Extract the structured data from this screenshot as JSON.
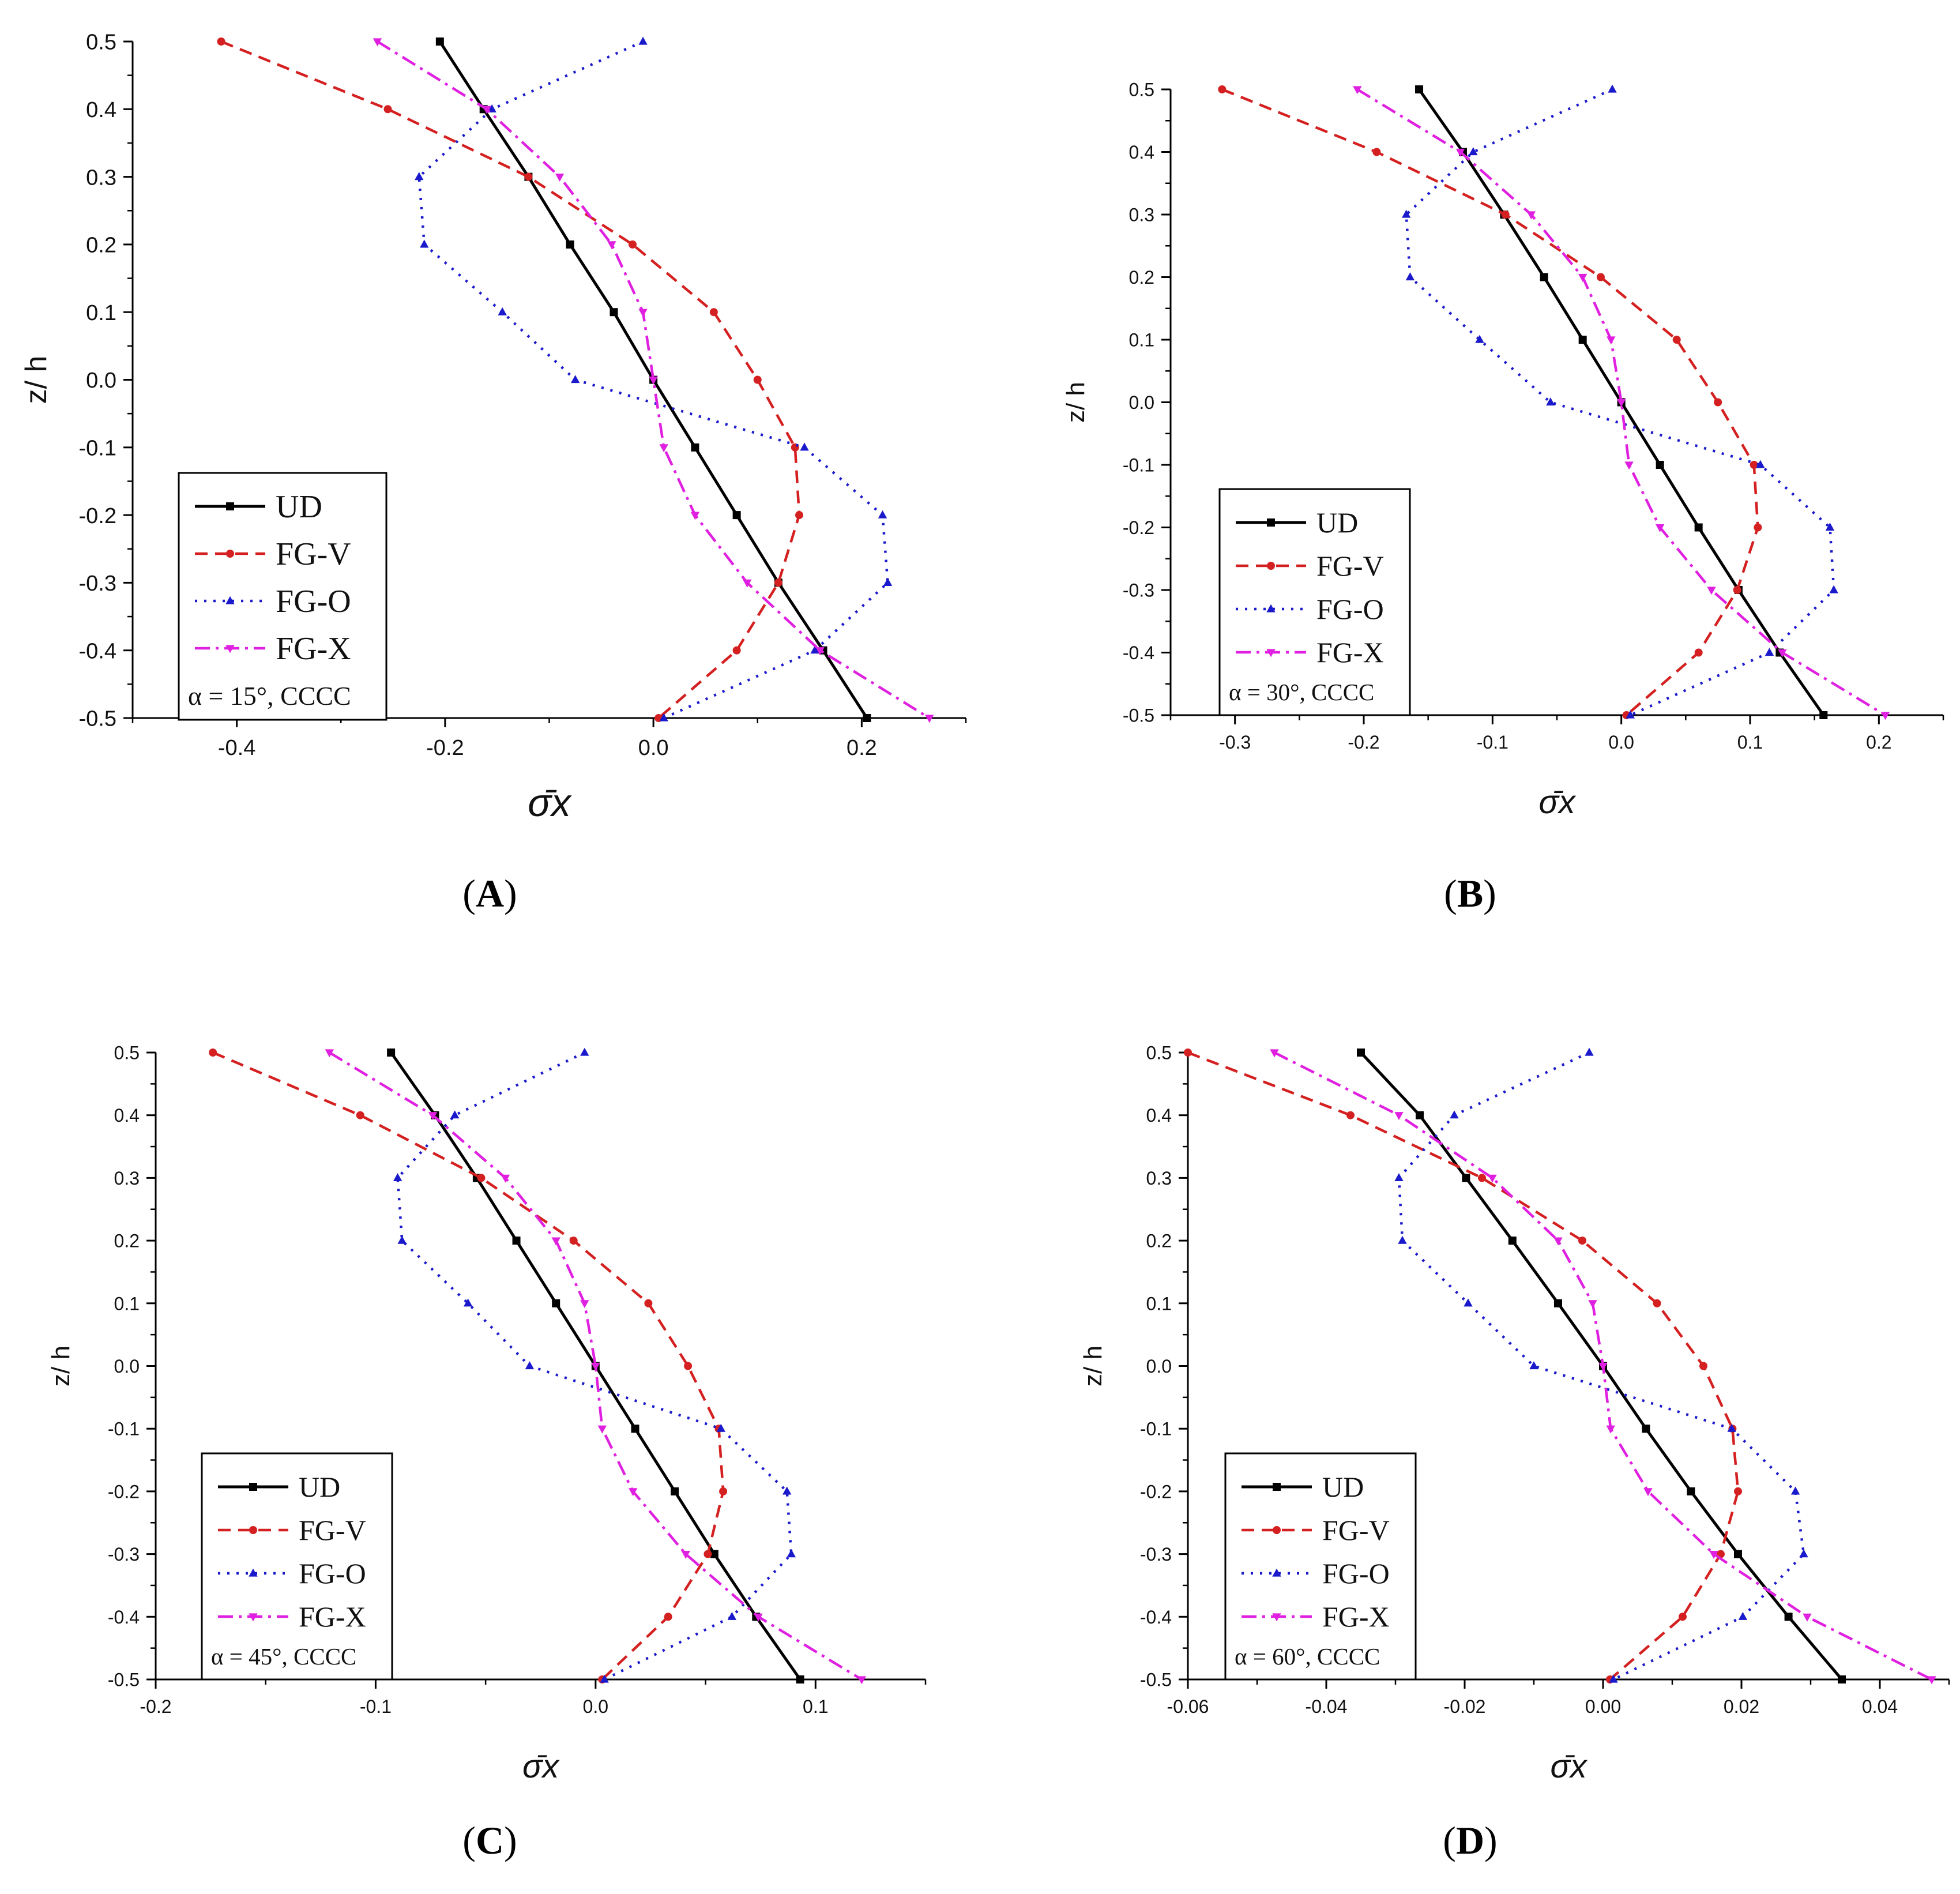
{
  "colors": {
    "UD": "#000000",
    "FG-V": "#d42020",
    "FG-O": "#1a1acc",
    "FG-X": "#e020e0"
  },
  "chart_data": [
    {
      "type": "line",
      "panel": "A",
      "caption_letter": "A",
      "xlabel": "σ̄x",
      "ylabel": "z/ h",
      "xlim": [
        -0.5,
        0.3
      ],
      "ylim": [
        -0.5,
        0.5
      ],
      "x_ticks": [
        -0.4,
        -0.2,
        0.0,
        0.2
      ],
      "x_tick_labels": [
        "-0.4",
        "-0.2",
        "0.0",
        "0.2"
      ],
      "y_ticks": [
        0.5,
        0.4,
        0.3,
        0.2,
        0.1,
        0.0,
        -0.1,
        -0.2,
        -0.3,
        -0.4,
        -0.5
      ],
      "y_tick_labels": [
        "0.5",
        "0.4",
        "0.3",
        "0.2",
        "0.1",
        "0.0",
        "-0.1",
        "-0.2",
        "-0.3",
        "-0.4",
        "-0.5"
      ],
      "annotation": "α = 15°, CCCC",
      "y": [
        0.5,
        0.4,
        0.3,
        0.2,
        0.1,
        0.0,
        -0.1,
        -0.2,
        -0.3,
        -0.4,
        -0.5
      ],
      "series": [
        {
          "name": "UD",
          "values": [
            -0.205,
            -0.163,
            -0.12,
            -0.08,
            -0.038,
            0.0,
            0.04,
            0.08,
            0.12,
            0.163,
            0.205
          ]
        },
        {
          "name": "FG-V",
          "values": [
            -0.415,
            -0.255,
            -0.12,
            -0.02,
            0.058,
            0.1,
            0.136,
            0.14,
            0.12,
            0.08,
            0.005
          ]
        },
        {
          "name": "FG-O",
          "values": [
            -0.01,
            -0.155,
            -0.225,
            -0.22,
            -0.145,
            -0.075,
            0.145,
            0.22,
            0.225,
            0.155,
            0.01
          ]
        },
        {
          "name": "FG-X",
          "values": [
            -0.265,
            -0.16,
            -0.09,
            -0.04,
            -0.01,
            0.0,
            0.01,
            0.04,
            0.09,
            0.16,
            0.265
          ]
        }
      ]
    },
    {
      "type": "line",
      "panel": "B",
      "caption_letter": "B",
      "xlabel": "σ̄x",
      "ylabel": "z/ h",
      "xlim": [
        -0.35,
        0.25
      ],
      "ylim": [
        -0.5,
        0.5
      ],
      "x_ticks": [
        -0.3,
        -0.2,
        -0.1,
        0.0,
        0.1,
        0.2
      ],
      "x_tick_labels": [
        "-0.3",
        "-0.2",
        "-0.1",
        "0.0",
        "0.1",
        "0.2"
      ],
      "y_ticks": [
        0.5,
        0.4,
        0.3,
        0.2,
        0.1,
        0.0,
        -0.1,
        -0.2,
        -0.3,
        -0.4,
        -0.5
      ],
      "y_tick_labels": [
        "0.5",
        "0.4",
        "0.3",
        "0.2",
        "0.1",
        "0.0",
        "-0.1",
        "-0.2",
        "-0.3",
        "-0.4",
        "-0.5"
      ],
      "annotation": "α = 30°, CCCC",
      "y": [
        0.5,
        0.4,
        0.3,
        0.2,
        0.1,
        0.0,
        -0.1,
        -0.2,
        -0.3,
        -0.4,
        -0.5
      ],
      "series": [
        {
          "name": "UD",
          "values": [
            -0.157,
            -0.123,
            -0.091,
            -0.06,
            -0.03,
            0.0,
            0.03,
            0.06,
            0.091,
            0.123,
            0.157
          ]
        },
        {
          "name": "FG-V",
          "values": [
            -0.31,
            -0.19,
            -0.09,
            -0.016,
            0.043,
            0.075,
            0.103,
            0.106,
            0.09,
            0.06,
            0.004
          ]
        },
        {
          "name": "FG-O",
          "values": [
            -0.007,
            -0.115,
            -0.167,
            -0.164,
            -0.11,
            -0.055,
            0.108,
            0.162,
            0.165,
            0.115,
            0.007
          ]
        },
        {
          "name": "FG-X",
          "values": [
            -0.205,
            -0.125,
            -0.07,
            -0.03,
            -0.008,
            0.0,
            0.006,
            0.03,
            0.07,
            0.125,
            0.205
          ]
        }
      ]
    },
    {
      "type": "line",
      "panel": "C",
      "caption_letter": "C",
      "xlabel": "σ̄x",
      "ylabel": "z/ h",
      "xlim": [
        -0.2,
        0.15
      ],
      "ylim": [
        -0.5,
        0.5
      ],
      "x_ticks": [
        -0.2,
        -0.1,
        0.0,
        0.1
      ],
      "x_tick_labels": [
        "-0.2",
        "-0.1",
        "0.0",
        "0.1"
      ],
      "y_ticks": [
        0.5,
        0.4,
        0.3,
        0.2,
        0.1,
        0.0,
        -0.1,
        -0.2,
        -0.3,
        -0.4,
        -0.5
      ],
      "y_tick_labels": [
        "0.5",
        "0.4",
        "0.3",
        "0.2",
        "0.1",
        "0.0",
        "-0.1",
        "-0.2",
        "-0.3",
        "-0.4",
        "-0.5"
      ],
      "annotation": "α = 45°, CCCC",
      "y": [
        0.5,
        0.4,
        0.3,
        0.2,
        0.1,
        0.0,
        -0.1,
        -0.2,
        -0.3,
        -0.4,
        -0.5
      ],
      "series": [
        {
          "name": "UD",
          "values": [
            -0.093,
            -0.073,
            -0.054,
            -0.036,
            -0.018,
            0.0,
            0.018,
            0.036,
            0.054,
            0.073,
            0.093
          ]
        },
        {
          "name": "FG-V",
          "values": [
            -0.174,
            -0.107,
            -0.052,
            -0.01,
            0.024,
            0.042,
            0.056,
            0.058,
            0.051,
            0.033,
            0.003
          ]
        },
        {
          "name": "FG-O",
          "values": [
            -0.005,
            -0.064,
            -0.09,
            -0.088,
            -0.058,
            -0.03,
            0.057,
            0.087,
            0.089,
            0.062,
            0.004
          ]
        },
        {
          "name": "FG-X",
          "values": [
            -0.121,
            -0.074,
            -0.041,
            -0.018,
            -0.005,
            0.0,
            0.003,
            0.017,
            0.041,
            0.074,
            0.121
          ]
        }
      ]
    },
    {
      "type": "line",
      "panel": "D",
      "caption_letter": "D",
      "xlabel": "σ̄x",
      "ylabel": "z/ h",
      "xlim": [
        -0.06,
        0.05
      ],
      "ylim": [
        -0.5,
        0.5
      ],
      "x_ticks": [
        -0.06,
        -0.04,
        -0.02,
        0.0,
        0.02,
        0.04
      ],
      "x_tick_labels": [
        "-0.06",
        "-0.04",
        "-0.02",
        "0.00",
        "0.02",
        "0.04"
      ],
      "y_ticks": [
        0.5,
        0.4,
        0.3,
        0.2,
        0.1,
        0.0,
        -0.1,
        -0.2,
        -0.3,
        -0.4,
        -0.5
      ],
      "y_tick_labels": [
        "0.5",
        "0.4",
        "0.3",
        "0.2",
        "0.1",
        "0.0",
        "-0.1",
        "-0.2",
        "-0.3",
        "-0.4",
        "-0.5"
      ],
      "annotation": "α = 60°, CCCC",
      "y": [
        0.5,
        0.4,
        0.3,
        0.2,
        0.1,
        0.0,
        -0.1,
        -0.2,
        -0.3,
        -0.4,
        -0.5
      ],
      "series": [
        {
          "name": "UD",
          "values": [
            -0.035,
            -0.0265,
            -0.0198,
            -0.0131,
            -0.0065,
            0.0,
            0.0062,
            0.0127,
            0.0195,
            0.0268,
            0.0345
          ]
        },
        {
          "name": "FG-V",
          "values": [
            -0.06,
            -0.0365,
            -0.0175,
            -0.003,
            0.0078,
            0.0145,
            0.0187,
            0.0195,
            0.017,
            0.0115,
            0.001
          ]
        },
        {
          "name": "FG-O",
          "values": [
            -0.002,
            -0.0215,
            -0.0295,
            -0.029,
            -0.0195,
            -0.01,
            0.0186,
            0.0278,
            0.029,
            0.0202,
            0.0015
          ]
        },
        {
          "name": "FG-X",
          "values": [
            -0.0475,
            -0.0295,
            -0.016,
            -0.0065,
            -0.0015,
            0.0,
            0.0011,
            0.0065,
            0.016,
            0.0295,
            0.0475
          ]
        }
      ]
    }
  ]
}
